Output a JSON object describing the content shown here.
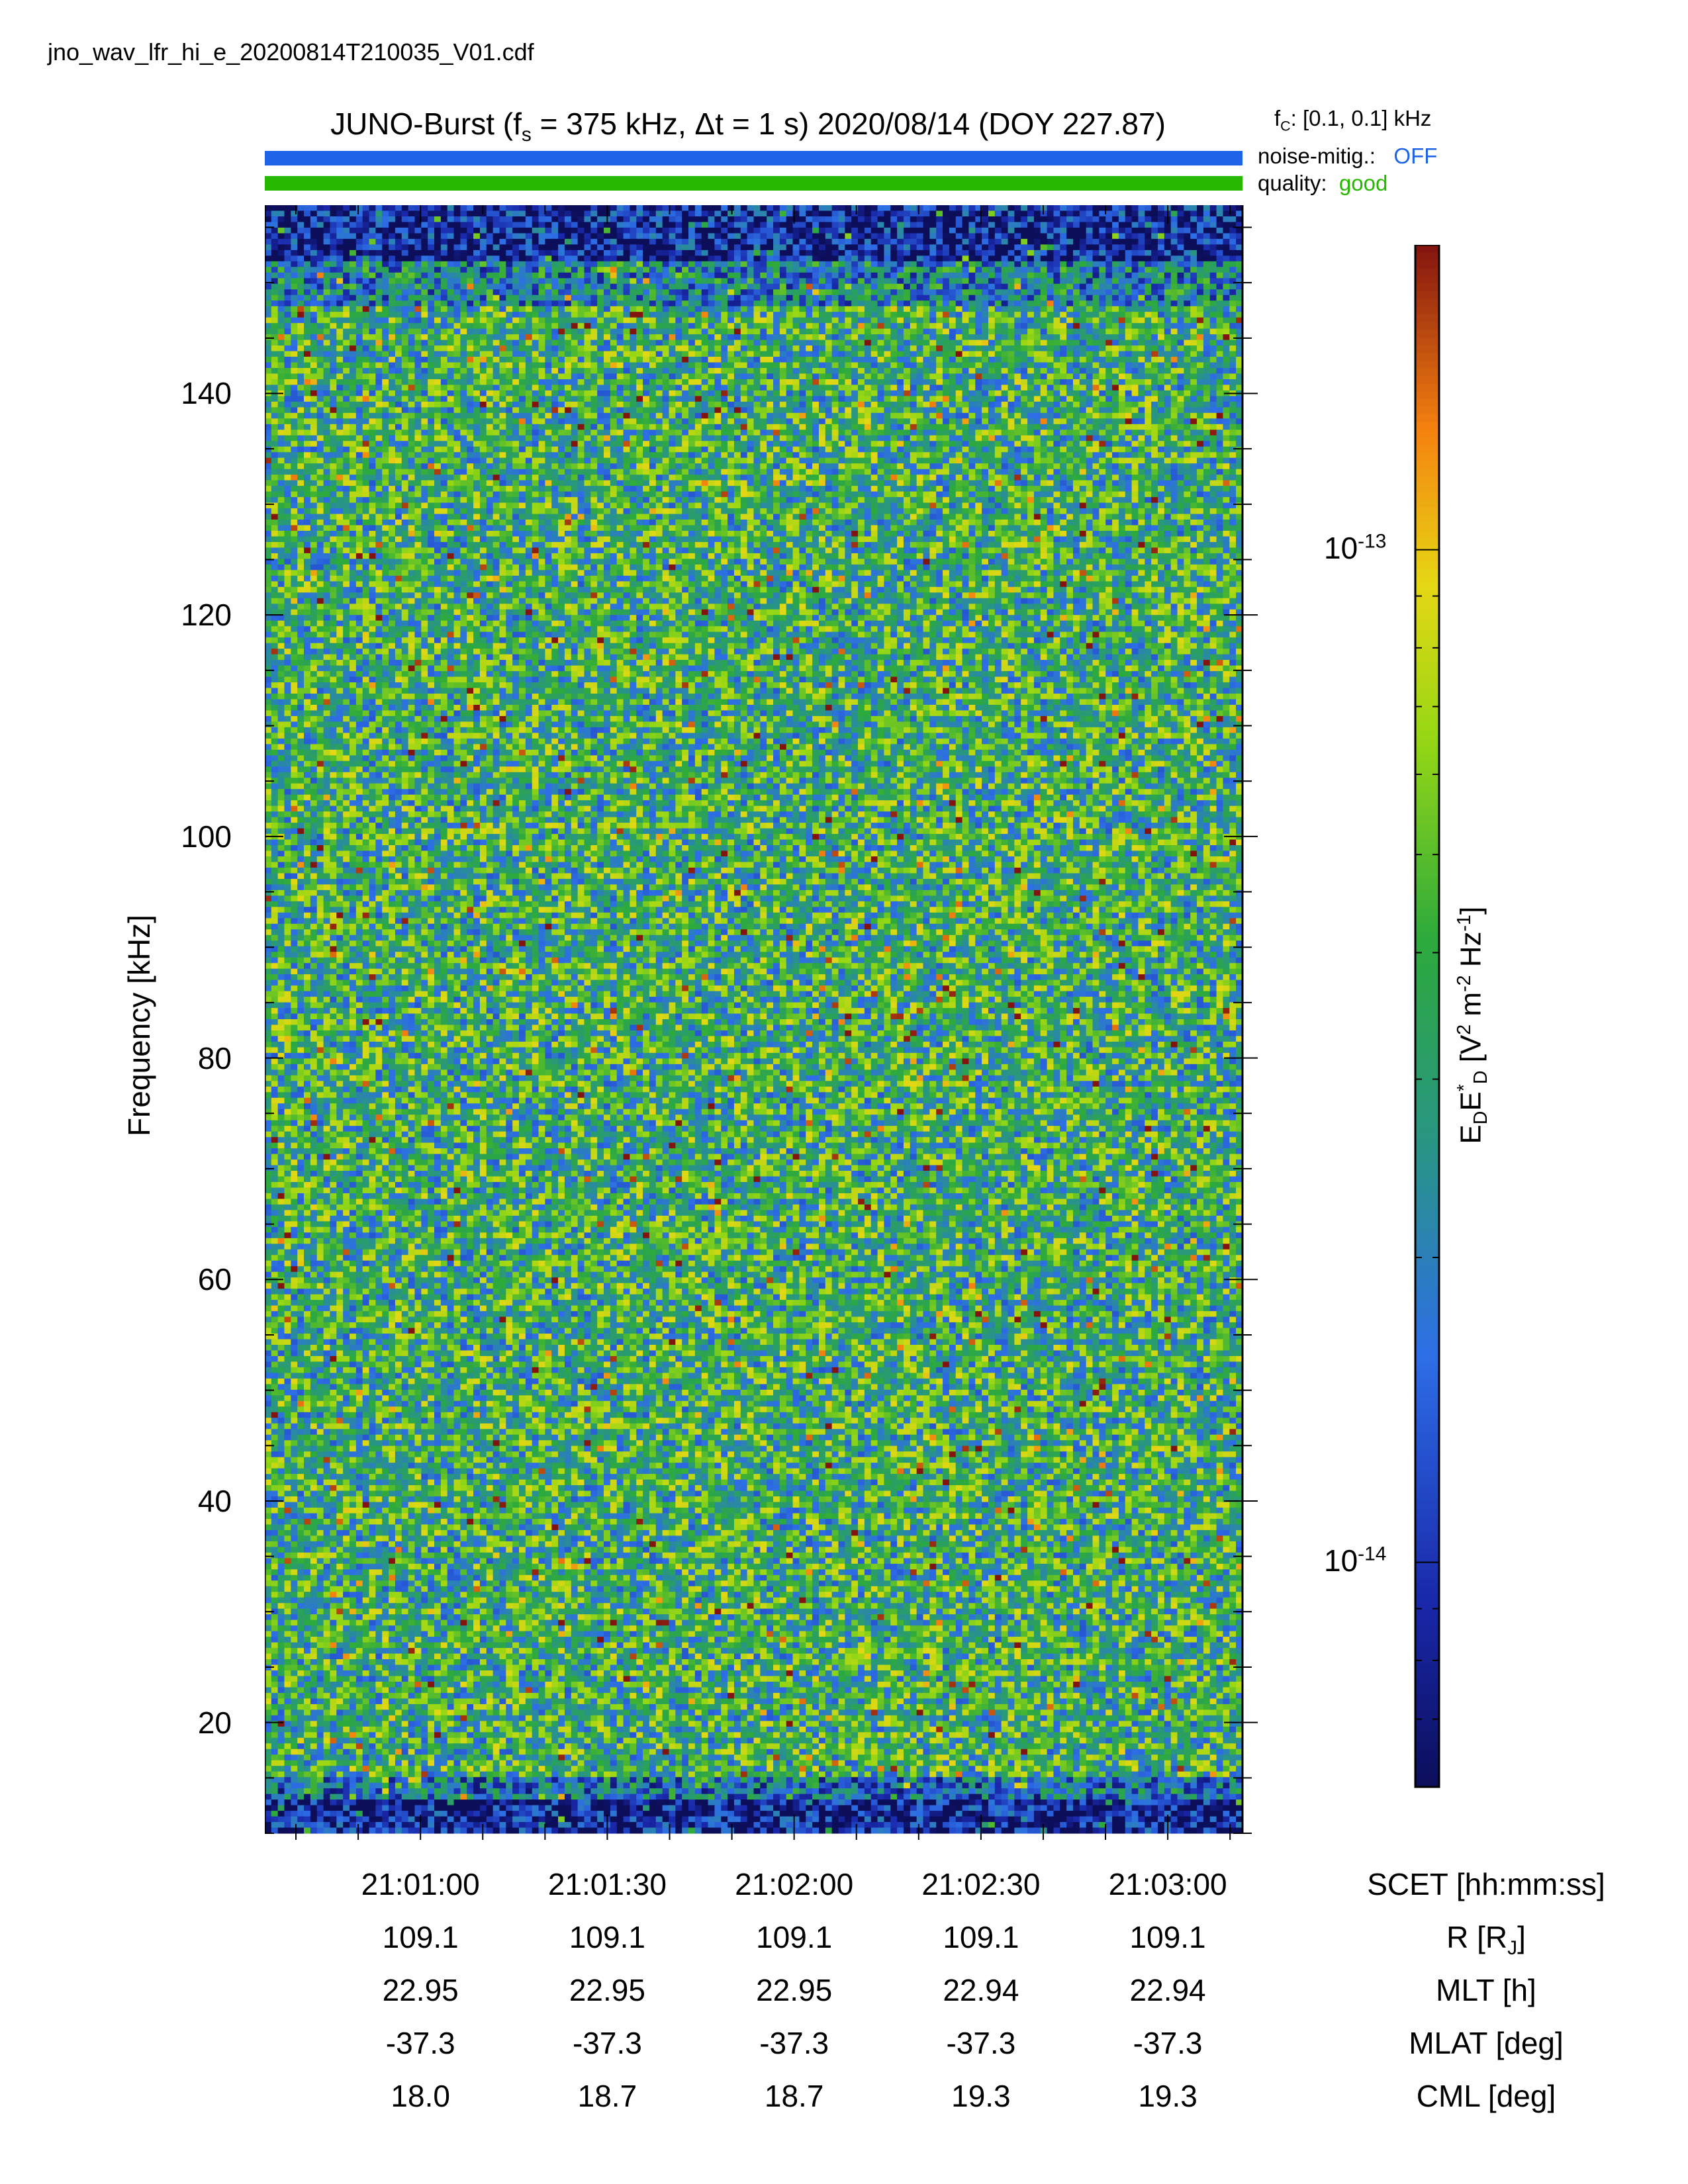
{
  "file_name": "jno_wav_lfr_hi_e_20200814T210035_V01.cdf",
  "header": {
    "title_prefix": "JUNO-Burst (f",
    "title_sub": "s",
    "title_suffix": " = 375 kHz, Δt = 1 s)  2020/08/14 (DOY 227.87)",
    "fc_prefix": "f",
    "fc_sub": "C",
    "fc_value": ": [0.1, 0.1] kHz",
    "noise_label": "noise-mitig.:",
    "noise_value": "OFF",
    "quality_label": "quality:",
    "quality_value": "good"
  },
  "colors": {
    "noise_bar": "#1f63e8",
    "noise_value": "#1f63e8",
    "quality_bar": "#27b800",
    "quality_value": "#27b800"
  },
  "chart_data": {
    "type": "heatmap",
    "ylabel": "Frequency [kHz]",
    "ylim": [
      10,
      157
    ],
    "y_ticks": [
      20,
      40,
      60,
      80,
      100,
      120,
      140
    ],
    "x_ticks": [
      "21:01:00",
      "21:01:30",
      "21:02:00",
      "21:02:30",
      "21:03:00"
    ],
    "x_tick_seconds": [
      60,
      90,
      120,
      150,
      180
    ],
    "xlim_seconds": [
      35,
      192
    ],
    "colorbar": {
      "label_main": "E",
      "label_sub1": "D",
      "label_main2": "E",
      "label_sup_star": "*",
      "label_sub2": "D",
      "label_units_a": " [V",
      "label_units_b": " m",
      "label_units_c": " Hz",
      "label_units_d": "]",
      "sup_2": "2",
      "sup_m2": "-2",
      "sup_m1": "-1",
      "scale": "log",
      "range": [
        6e-15,
        2e-13
      ],
      "ticks": [
        {
          "base": "10",
          "exp": "-13",
          "value": 1e-13
        },
        {
          "base": "10",
          "exp": "-14",
          "value": 1e-14
        }
      ]
    },
    "ephemeris": [
      {
        "label": "SCET [hh:mm:ss]",
        "values": [
          "21:01:00",
          "21:01:30",
          "21:02:00",
          "21:02:30",
          "21:03:00"
        ]
      },
      {
        "label": "R [R",
        "label_sub": "J",
        "label_end": "]",
        "values": [
          "109.1",
          "109.1",
          "109.1",
          "109.1",
          "109.1"
        ]
      },
      {
        "label": "MLT [h]",
        "values": [
          "22.95",
          "22.95",
          "22.95",
          "22.94",
          "22.94"
        ]
      },
      {
        "label": "MLAT [deg]",
        "values": [
          "-37.3",
          "-37.3",
          "-37.3",
          "-37.3",
          "-37.3"
        ]
      },
      {
        "label": "CML [deg]",
        "values": [
          "18.0",
          "18.7",
          "18.7",
          "19.3",
          "19.3"
        ]
      }
    ]
  }
}
